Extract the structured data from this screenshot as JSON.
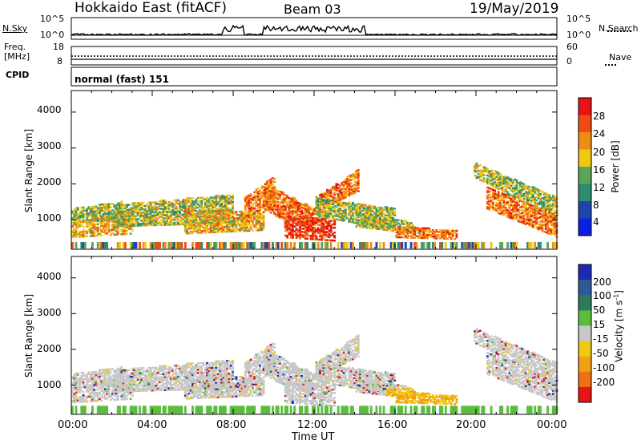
{
  "header": {
    "title": "Hokkaido East (fitACF)",
    "beam": "Beam 03",
    "date": "19/May/2019"
  },
  "noise_panel": {
    "label_left": "N.Sky",
    "tick_top_left": "10^5",
    "tick_bottom_left": "10^0",
    "label_right": "N.Search",
    "tick_top_right": "10^5",
    "tick_bottom_right": "10^0"
  },
  "freq_panel": {
    "label_line1": "Freq.",
    "label_line2": "[MHz]",
    "tick_top": "18",
    "tick_bottom": "8",
    "label_right": "Nave",
    "tick_top_right": "60",
    "tick_bottom_right": "0"
  },
  "cpid_panel": {
    "label": "CPID",
    "mode_text": "normal (fast) 151"
  },
  "chart_data": [
    {
      "type": "heatmap",
      "name": "power",
      "ylabel": "Slant Range [km]",
      "y_ticks": [
        "1000",
        "2000",
        "3000",
        "4000"
      ],
      "ylim": [
        180,
        4600
      ],
      "xlim": [
        0,
        24
      ],
      "colorbar": {
        "label": "Power [dB]",
        "ticks": [
          "4",
          "8",
          "12",
          "16",
          "20",
          "24",
          "28"
        ],
        "colors": [
          "#0a1ee6",
          "#1e46aa",
          "#2c8c6e",
          "#5aa55a",
          "#f0c814",
          "#f08c14",
          "#f04b14",
          "#e61414"
        ]
      }
    },
    {
      "type": "heatmap",
      "name": "velocity",
      "ylabel": "Slant Range [km]",
      "y_ticks": [
        "1000",
        "2000",
        "3000",
        "4000"
      ],
      "ylim": [
        180,
        4600
      ],
      "xlim": [
        0,
        24
      ],
      "xlabel": "Time UT",
      "x_ticks": [
        "00:00",
        "04:00",
        "08:00",
        "12:00",
        "16:00",
        "20:00",
        "00:00"
      ],
      "colorbar": {
        "label": "Velocity [m s^-1]",
        "ticks": [
          "200",
          "100",
          "50",
          "15",
          "-15",
          "-50",
          "-100",
          "-200"
        ],
        "colors": [
          "#1e28b4",
          "#2d5a96",
          "#2d7a5a",
          "#5abe3c",
          "#c8c8c8",
          "#f0c814",
          "#f0a014",
          "#f06e14",
          "#e61414"
        ]
      }
    }
  ]
}
